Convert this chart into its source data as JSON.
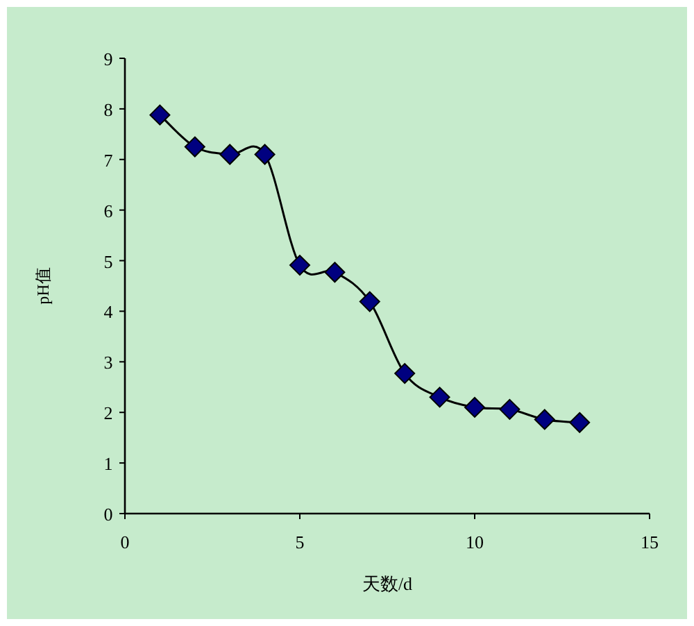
{
  "chart_data": {
    "type": "line",
    "xlabel": "天数/d",
    "ylabel": "pH值",
    "x": [
      1,
      2,
      3,
      4,
      5,
      6,
      7,
      8,
      9,
      10,
      11,
      12,
      13
    ],
    "series": [
      {
        "color": "#000080",
        "values": [
          7.88,
          7.25,
          7.1,
          7.1,
          4.91,
          4.77,
          4.19,
          2.77,
          2.3,
          2.1,
          2.06,
          1.86,
          1.8
        ]
      }
    ],
    "xlim": [
      0,
      15
    ],
    "xticks": [
      0,
      5,
      10,
      15
    ],
    "ylim": [
      0,
      9
    ],
    "yticks": [
      0,
      1,
      2,
      3,
      4,
      5,
      6,
      7,
      8,
      9
    ],
    "marker": "diamond"
  }
}
